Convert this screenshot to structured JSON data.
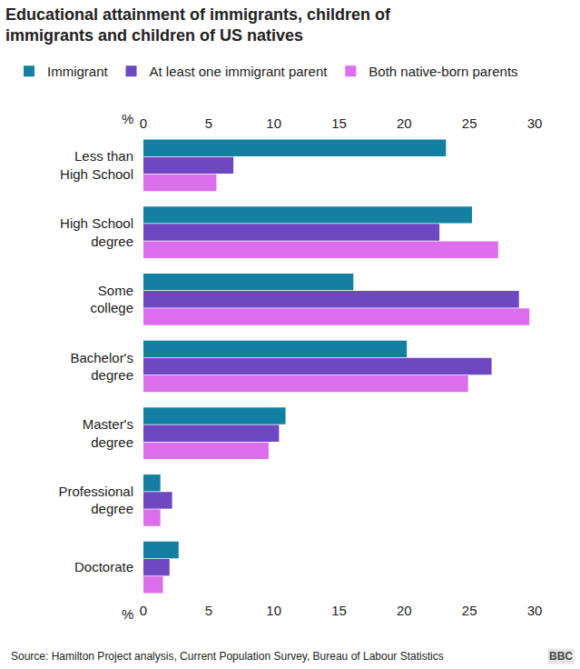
{
  "chart_data": {
    "type": "bar",
    "orientation": "horizontal",
    "title": "Educational attainment of immigrants, children of immigrants and children of US natives",
    "xlabel": "%",
    "categories": [
      "Less than High School",
      "High School degree",
      "Some college",
      "Bachelor's degree",
      "Master's degree",
      "Professional degree",
      "Doctorate"
    ],
    "series": [
      {
        "name": "Immigrant",
        "color": "#1380a1",
        "values": [
          23.2,
          25.2,
          16.1,
          20.2,
          10.9,
          1.3,
          2.7
        ]
      },
      {
        "name": "At least one immigrant parent",
        "color": "#6e47c2",
        "values": [
          6.9,
          22.7,
          28.8,
          26.7,
          10.4,
          2.2,
          2.0
        ]
      },
      {
        "name": "Both native-born parents",
        "color": "#dc6ded",
        "values": [
          5.6,
          27.2,
          29.6,
          24.9,
          9.6,
          1.3,
          1.5
        ]
      }
    ],
    "xlim": [
      0,
      30
    ],
    "xticks": [
      0,
      5,
      10,
      15,
      20,
      25,
      30
    ],
    "grid": false,
    "legend": "top-left",
    "annotations": [
      "Source: Hamilton Project analysis, Current Population Survey, Bureau of Labour Statistics",
      "BBC"
    ]
  }
}
